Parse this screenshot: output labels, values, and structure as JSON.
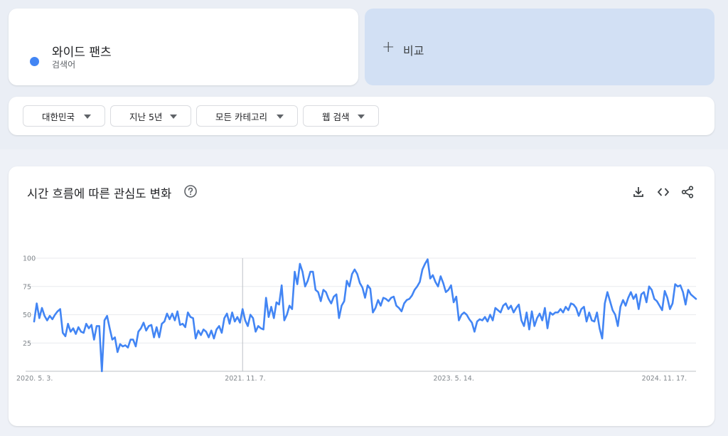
{
  "search_term": {
    "name": "와이드 팬츠",
    "type": "검색어",
    "color": "#4285f4"
  },
  "compare": {
    "plus": "+",
    "label": "비교"
  },
  "filters": {
    "region": "대한민국",
    "time_range": "지난 5년",
    "category": "모든 카테고리",
    "property": "웹 검색"
  },
  "chart_title": "시간 흐름에 따른 관심도 변화",
  "icons": [
    "help-icon",
    "download-icon",
    "embed-icon",
    "share-icon"
  ],
  "chart_data": {
    "type": "line",
    "ylim": [
      0,
      100
    ],
    "y_ticks": [
      25,
      50,
      75,
      100
    ],
    "x_tick_labels": [
      "2020. 5. 3.",
      "2021. 11. 7.",
      "2023. 5. 14.",
      "2024. 11. 17."
    ],
    "x_tick_index": [
      0,
      80,
      160,
      240
    ],
    "partial_marker_label": "",
    "series": [
      {
        "color": "#4285f4",
        "values": [
          44,
          60,
          47,
          56,
          49,
          45,
          49,
          46,
          50,
          53,
          55,
          34,
          31,
          42,
          35,
          38,
          33,
          39,
          35,
          34,
          42,
          38,
          41,
          28,
          40,
          40,
          0,
          45,
          49,
          38,
          28,
          30,
          17,
          24,
          22,
          23,
          21,
          28,
          28,
          22,
          35,
          38,
          43,
          36,
          40,
          41,
          30,
          39,
          30,
          42,
          44,
          51,
          46,
          51,
          45,
          53,
          41,
          42,
          39,
          52,
          48,
          47,
          29,
          36,
          32,
          37,
          35,
          30,
          36,
          29,
          37,
          40,
          34,
          47,
          51,
          42,
          52,
          44,
          48,
          43,
          55,
          45,
          40,
          50,
          47,
          35,
          40,
          38,
          37,
          65,
          48,
          57,
          47,
          61,
          59,
          76,
          45,
          50,
          58,
          55,
          88,
          77,
          95,
          88,
          75,
          80,
          88,
          88,
          72,
          70,
          62,
          72,
          70,
          64,
          60,
          66,
          68,
          47,
          58,
          62,
          80,
          75,
          86,
          90,
          86,
          78,
          74,
          65,
          76,
          73,
          52,
          56,
          63,
          58,
          65,
          64,
          62,
          65,
          66,
          58,
          56,
          53,
          60,
          63,
          64,
          67,
          72,
          75,
          79,
          90,
          95,
          99,
          82,
          85,
          79,
          75,
          84,
          78,
          70,
          72,
          76,
          61,
          66,
          45,
          50,
          52,
          50,
          46,
          43,
          35,
          44,
          46,
          45,
          48,
          44,
          50,
          45,
          56,
          54,
          52,
          58,
          60,
          55,
          58,
          52,
          56,
          59,
          45,
          40,
          52,
          37,
          53,
          40,
          47,
          51,
          45,
          56,
          38,
          52,
          50,
          52,
          52,
          55,
          52,
          57,
          54,
          60,
          59,
          56,
          49,
          55,
          57,
          44,
          52,
          45,
          44,
          52,
          38,
          29,
          60,
          70,
          62,
          54,
          50,
          40,
          57,
          63,
          58,
          65,
          70,
          64,
          68,
          55,
          68,
          70,
          61,
          75,
          72,
          64,
          62,
          58,
          54,
          71,
          65,
          55,
          60,
          77,
          75,
          76,
          70,
          59,
          72,
          68,
          66,
          64
        ]
      }
    ]
  }
}
